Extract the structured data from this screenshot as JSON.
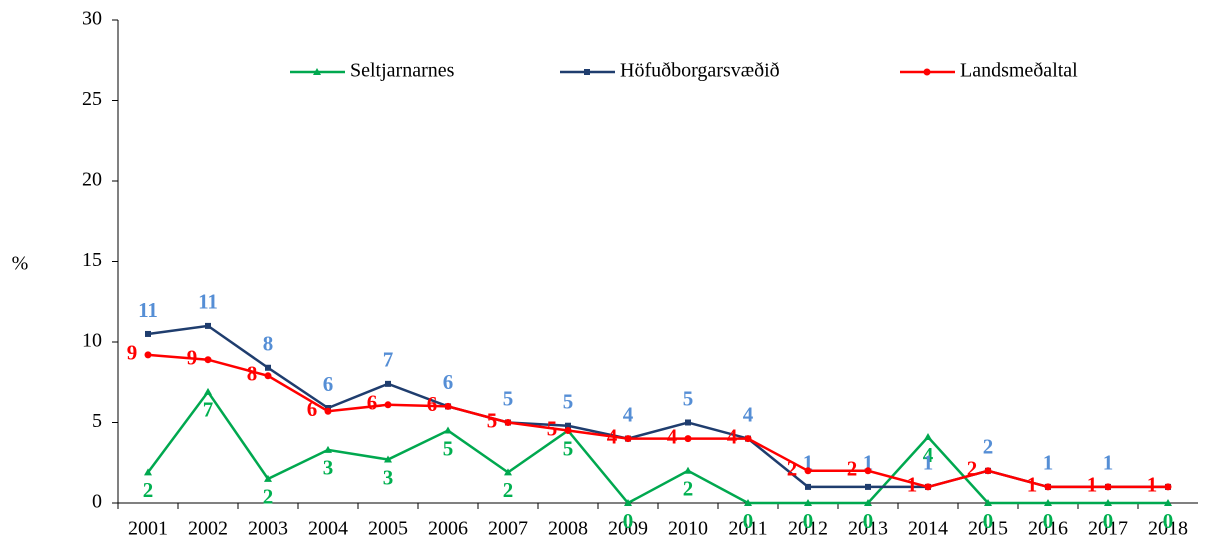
{
  "chart_data": {
    "type": "line",
    "y_label": "%",
    "categories": [
      "2001",
      "2002",
      "2003",
      "2004",
      "2005",
      "2006",
      "2007",
      "2008",
      "2009",
      "2010",
      "2011",
      "2012",
      "2013",
      "2014",
      "2015",
      "2016",
      "2017",
      "2018"
    ],
    "series": [
      {
        "name": "Seltjarnarnes",
        "color": "#00a84f",
        "label_color": "#00b050",
        "marker": "triangle",
        "values": [
          1.9,
          6.9,
          1.5,
          3.3,
          2.7,
          4.5,
          1.9,
          4.5,
          0,
          2.0,
          0,
          0,
          0,
          4.1,
          0,
          0,
          0,
          0
        ],
        "value_labels": [
          "2",
          "7",
          "2",
          "3",
          "3",
          "5",
          "2",
          "5",
          "0",
          "2",
          "0",
          "0",
          "0",
          "4",
          "0",
          "0",
          "0",
          "0"
        ]
      },
      {
        "name": "Höfuðborgarsvæðið",
        "color": "#1f3d6e",
        "label_color": "#558ed5",
        "marker": "square",
        "values": [
          10.5,
          11.0,
          8.4,
          5.9,
          7.4,
          6.0,
          5.0,
          4.8,
          4.0,
          5.0,
          4.0,
          1.0,
          1.0,
          1.0,
          2.0,
          1.0,
          1.0,
          1.0
        ],
        "value_labels": [
          "11",
          "11",
          "8",
          "6",
          "7",
          "6",
          "5",
          "5",
          "4",
          "5",
          "4",
          "1",
          "1",
          "1",
          "2",
          "1",
          "1",
          null
        ]
      },
      {
        "name": "Landsmeðaltal",
        "color": "#ff0000",
        "label_color": "#ff0000",
        "marker": "circle",
        "values": [
          9.2,
          8.9,
          7.9,
          5.7,
          6.1,
          6.0,
          5.0,
          4.5,
          4.0,
          4.0,
          4.0,
          2.0,
          2.0,
          1.0,
          2.0,
          1.0,
          1.0,
          1.0
        ],
        "value_labels": [
          "9",
          "9",
          "8",
          "6",
          "6",
          "6",
          "5",
          "5",
          "4",
          "4",
          "4",
          "2",
          "2",
          "1",
          "2",
          "1",
          "1",
          "1"
        ]
      }
    ],
    "ylim": [
      0,
      30
    ],
    "yticks": [
      0,
      5,
      10,
      15,
      20,
      25,
      30
    ],
    "grid": false,
    "legend": "top"
  }
}
